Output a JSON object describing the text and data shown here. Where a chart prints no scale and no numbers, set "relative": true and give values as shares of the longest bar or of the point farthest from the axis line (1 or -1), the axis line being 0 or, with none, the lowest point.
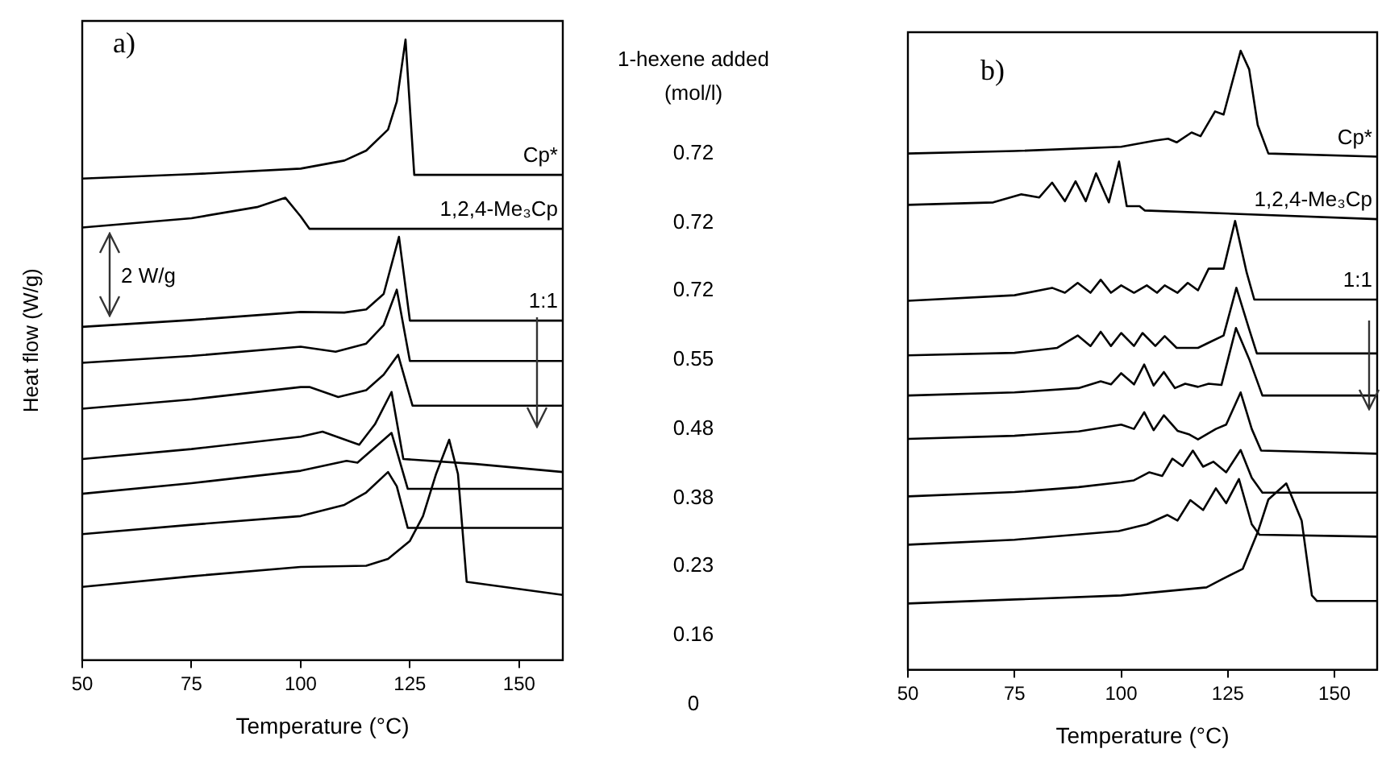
{
  "chart_data": [
    {
      "type": "line",
      "xlabel": "Temperature (°C)",
      "ylabel": "Heat flow (W/g)",
      "relative": true,
      "xlim": [
        50,
        160
      ],
      "xticks": [
        50,
        75,
        100,
        125,
        150
      ],
      "tick_labels": "x",
      "legend": false,
      "marker": "none",
      "line_style": "solid",
      "grid": false,
      "annotations": [
        "a)",
        "2 W/g"
      ],
      "series": [
        {
          "name": "Cp*",
          "color": "#000000",
          "x": [
            50,
            75,
            100,
            110,
            115,
            120,
            122,
            124,
            126,
            130,
            160
          ],
          "values": [
            0.776,
            0.783,
            0.792,
            0.805,
            0.821,
            0.855,
            0.9,
            1,
            0.782,
            0.782,
            0.782
          ]
        },
        {
          "name": "1,2,4-Me₃Cp",
          "color": "#000000",
          "x": [
            50,
            75,
            90,
            96.5,
            100,
            102,
            160
          ],
          "values": [
            0.697,
            0.712,
            0.73,
            0.745,
            0.715,
            0.695,
            0.695
          ]
        },
        {
          "name": "1:1",
          "color": "#000000",
          "x": [
            50,
            75,
            100,
            110,
            115,
            119,
            122.5,
            125,
            160
          ],
          "values": [
            0.537,
            0.548,
            0.561,
            0.56,
            0.565,
            0.59,
            0.682,
            0.547,
            0.547
          ]
        },
        {
          "color": "#000000",
          "x": [
            50,
            75,
            100,
            108,
            115,
            119,
            122,
            125,
            160
          ],
          "values": [
            0.479,
            0.49,
            0.505,
            0.497,
            0.51,
            0.54,
            0.597,
            0.482,
            0.482
          ]
        },
        {
          "color": "#000000",
          "x": [
            50,
            75,
            100,
            102,
            108.6,
            115,
            119,
            122.3,
            125.6,
            160
          ],
          "values": [
            0.405,
            0.42,
            0.44,
            0.44,
            0.424,
            0.435,
            0.46,
            0.492,
            0.41,
            0.41
          ]
        },
        {
          "color": "#000000",
          "x": [
            50,
            75,
            100,
            105,
            113.4,
            117,
            120.8,
            123.5,
            140,
            160
          ],
          "values": [
            0.324,
            0.34,
            0.36,
            0.368,
            0.347,
            0.38,
            0.432,
            0.324,
            0.316,
            0.303
          ]
        },
        {
          "color": "#000000",
          "x": [
            50,
            75,
            100,
            110.5,
            113,
            120.8,
            124.5,
            160
          ],
          "values": [
            0.268,
            0.285,
            0.305,
            0.321,
            0.318,
            0.366,
            0.276,
            0.276
          ]
        },
        {
          "color": "#000000",
          "x": [
            50,
            75,
            100,
            110,
            115,
            120,
            122,
            124.5,
            160
          ],
          "values": [
            0.203,
            0.218,
            0.232,
            0.25,
            0.27,
            0.303,
            0.28,
            0.213,
            0.213
          ]
        },
        {
          "color": "#000000",
          "x": [
            50,
            75,
            100,
            115,
            120,
            125,
            128,
            131,
            134,
            136,
            138,
            160
          ],
          "values": [
            0.118,
            0.135,
            0.15,
            0.152,
            0.163,
            0.192,
            0.232,
            0.3,
            0.355,
            0.3,
            0.126,
            0.105
          ]
        }
      ]
    },
    {
      "type": "other",
      "annotations": [
        "1-hexene added (mol/l)",
        "0.72",
        "0.72",
        "0.72",
        "0.55",
        "0.48",
        "0.38",
        "0.23",
        "0.16",
        "0"
      ]
    },
    {
      "type": "line",
      "xlabel": "Temperature (°C)",
      "relative": true,
      "xlim": [
        50,
        160
      ],
      "xticks": [
        50,
        75,
        100,
        125,
        150
      ],
      "tick_labels": "x",
      "legend": false,
      "marker": "none",
      "line_style": "solid",
      "grid": false,
      "annotations": [
        "b)"
      ],
      "series": [
        {
          "name": "Cp*",
          "color": "#000000",
          "x": [
            50,
            75,
            100,
            108,
            111,
            113,
            116.5,
            118.6,
            122,
            124,
            128,
            130,
            132,
            134.5,
            160
          ],
          "values": [
            0.834,
            0.838,
            0.845,
            0.855,
            0.858,
            0.852,
            0.868,
            0.862,
            0.902,
            0.897,
            1,
            0.97,
            0.88,
            0.834,
            0.829
          ]
        },
        {
          "name": "1,2,4-Me₃Cp",
          "color": "#000000",
          "x": [
            50,
            70,
            76.6,
            80.8,
            83.8,
            86.8,
            89.3,
            91.7,
            94.1,
            97.1,
            99.5,
            101.3,
            104.3,
            105.5,
            160
          ],
          "values": [
            0.751,
            0.755,
            0.768,
            0.763,
            0.787,
            0.757,
            0.789,
            0.757,
            0.802,
            0.755,
            0.821,
            0.749,
            0.749,
            0.742,
            0.728
          ]
        },
        {
          "name": "1:1",
          "color": "#000000",
          "x": [
            50,
            75,
            83.8,
            86.8,
            89.8,
            92.8,
            95.2,
            97.6,
            100,
            103,
            106,
            108.4,
            110.2,
            113.2,
            115.6,
            118,
            120.5,
            124,
            126.7,
            129.4,
            131.2,
            160
          ],
          "values": [
            0.596,
            0.605,
            0.617,
            0.609,
            0.625,
            0.609,
            0.63,
            0.609,
            0.621,
            0.609,
            0.621,
            0.609,
            0.621,
            0.609,
            0.625,
            0.613,
            0.648,
            0.648,
            0.725,
            0.642,
            0.598,
            0.598
          ]
        },
        {
          "color": "#000000",
          "x": [
            50,
            75,
            85,
            89.8,
            92.8,
            95.2,
            97.6,
            100,
            103,
            105,
            108,
            110.2,
            113,
            118,
            121,
            124,
            127,
            130,
            131.8,
            160
          ],
          "values": [
            0.508,
            0.512,
            0.52,
            0.54,
            0.523,
            0.546,
            0.523,
            0.544,
            0.523,
            0.544,
            0.523,
            0.539,
            0.52,
            0.52,
            0.53,
            0.54,
            0.617,
            0.55,
            0.511,
            0.511
          ]
        },
        {
          "color": "#000000",
          "x": [
            50,
            75,
            90,
            95.2,
            97.6,
            100,
            103,
            105.4,
            107.6,
            110,
            112.6,
            115,
            118,
            120.5,
            123.5,
            126.9,
            130.1,
            133.1,
            160
          ],
          "values": [
            0.443,
            0.448,
            0.455,
            0.466,
            0.461,
            0.479,
            0.461,
            0.493,
            0.459,
            0.481,
            0.455,
            0.462,
            0.457,
            0.462,
            0.46,
            0.552,
            0.5,
            0.443,
            0.443
          ]
        },
        {
          "color": "#000000",
          "x": [
            50,
            75,
            90,
            100,
            103,
            105.4,
            107.6,
            110,
            113.2,
            116,
            118,
            122.2,
            124.6,
            128,
            130.6,
            132.8,
            160
          ],
          "values": [
            0.373,
            0.378,
            0.385,
            0.396,
            0.389,
            0.416,
            0.387,
            0.411,
            0.386,
            0.38,
            0.372,
            0.389,
            0.396,
            0.448,
            0.389,
            0.354,
            0.349
          ]
        },
        {
          "color": "#000000",
          "x": [
            50,
            75,
            90,
            100,
            103,
            106.6,
            109.6,
            112,
            114.4,
            116.8,
            119.2,
            121.6,
            124.6,
            128,
            130.6,
            133.1,
            160
          ],
          "values": [
            0.28,
            0.287,
            0.295,
            0.303,
            0.306,
            0.319,
            0.313,
            0.341,
            0.329,
            0.354,
            0.328,
            0.336,
            0.319,
            0.355,
            0.31,
            0.286,
            0.286
          ]
        },
        {
          "color": "#000000",
          "x": [
            50,
            75,
            99.4,
            106,
            110.8,
            113.2,
            116.2,
            119.2,
            122.2,
            124.6,
            127.6,
            130.6,
            132.4,
            160
          ],
          "values": [
            0.202,
            0.21,
            0.224,
            0.235,
            0.25,
            0.241,
            0.274,
            0.258,
            0.293,
            0.269,
            0.308,
            0.235,
            0.218,
            0.215
          ]
        },
        {
          "color": "#000000",
          "x": [
            50,
            100,
            120,
            123.6,
            128.5,
            132.1,
            134.5,
            138.7,
            142.3,
            144.7,
            145.9,
            160
          ],
          "values": [
            0.107,
            0.12,
            0.133,
            0.146,
            0.163,
            0.224,
            0.275,
            0.301,
            0.241,
            0.12,
            0.111,
            0.111
          ]
        }
      ]
    }
  ]
}
